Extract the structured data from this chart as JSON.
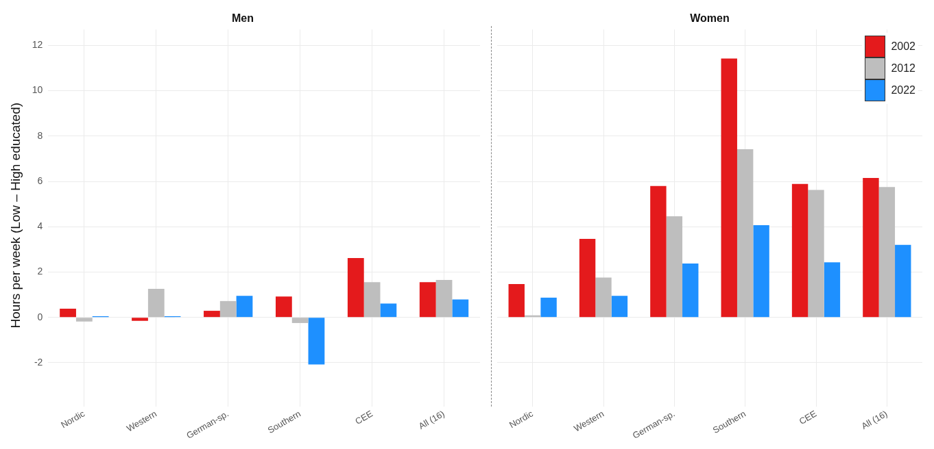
{
  "chart_data": [
    {
      "type": "bar",
      "title": "Men",
      "ylabel": "Hours per week (Low – High educated)",
      "categories": [
        "Nordic",
        "Western",
        "German-sp.",
        "Southern",
        "CEE",
        "All (16)"
      ],
      "series": [
        {
          "color": "#e41a1c",
          "values": [
            0.38,
            -0.15,
            0.29,
            0.92,
            2.62,
            1.55
          ]
        },
        {
          "color": "#bebebe",
          "values": [
            -0.18,
            1.26,
            0.72,
            -0.25,
            1.55,
            1.65
          ]
        },
        {
          "color": "#1e90ff",
          "values": [
            0.05,
            0.05,
            0.95,
            -2.08,
            0.61,
            0.79
          ]
        }
      ],
      "ylim": [
        -3.7,
        12.7
      ],
      "yticks": [
        -2,
        0,
        2,
        4,
        6,
        8,
        10,
        12
      ],
      "grid": true,
      "legend": false
    },
    {
      "type": "bar",
      "title": "Women",
      "categories": [
        "Nordic",
        "Western",
        "German-sp.",
        "Southern",
        "CEE",
        "All (16)"
      ],
      "series": [
        {
          "name": "2002",
          "color": "#e41a1c",
          "values": [
            1.47,
            3.46,
            5.8,
            11.42,
            5.89,
            6.15
          ]
        },
        {
          "name": "2012",
          "color": "#bebebe",
          "values": [
            0.09,
            1.76,
            4.46,
            7.42,
            5.62,
            5.75
          ]
        },
        {
          "name": "2022",
          "color": "#1e90ff",
          "values": [
            0.87,
            0.95,
            2.38,
            4.07,
            2.43,
            3.2
          ]
        }
      ],
      "ylim": [
        -3.7,
        12.7
      ],
      "yticks": [
        -2,
        0,
        2,
        4,
        6,
        8,
        10,
        12
      ],
      "grid": true,
      "legend": "top right",
      "tick_labels": "x"
    }
  ]
}
